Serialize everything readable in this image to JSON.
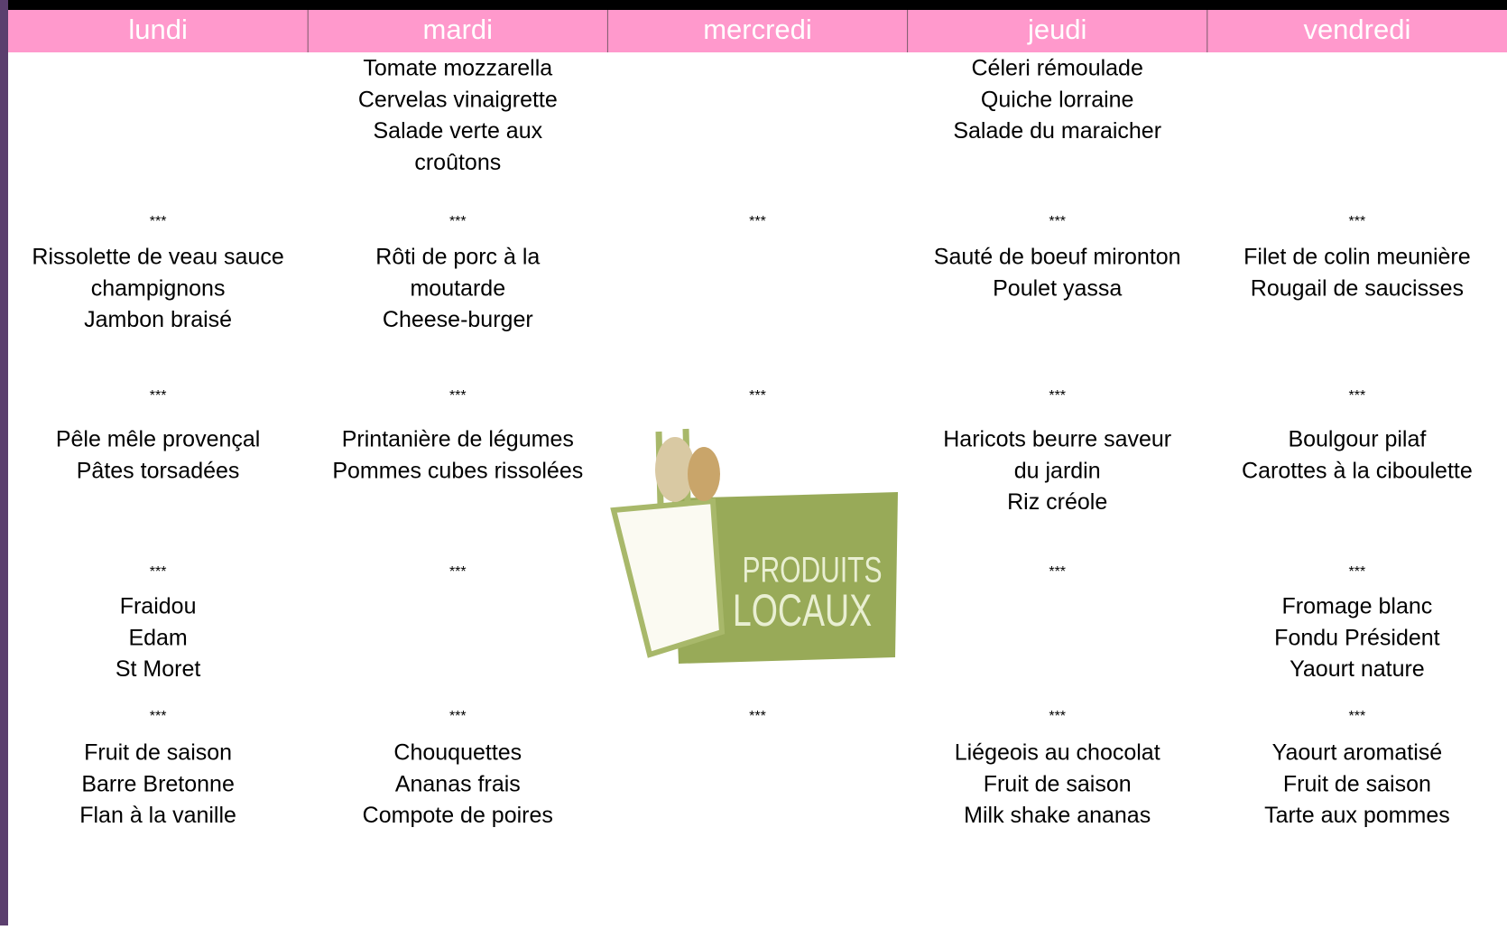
{
  "days": [
    {
      "name": "lundi",
      "separators": [
        "***",
        "***",
        "***",
        "***"
      ],
      "courses": [
        [],
        [
          "Rissolette de veau sauce",
          "champignons",
          "Jambon braisé"
        ],
        [
          "Pêle mêle provençal",
          "Pâtes torsadées"
        ],
        [
          "Fraidou",
          "Edam",
          "St Moret"
        ],
        [
          "Fruit de saison",
          "Barre Bretonne",
          "Flan à la vanille"
        ]
      ]
    },
    {
      "name": "mardi",
      "separators": [
        "***",
        "***",
        "***",
        "***"
      ],
      "courses": [
        [
          "Tomate mozzarella",
          "Cervelas vinaigrette",
          "Salade verte aux",
          "croûtons"
        ],
        [
          "Rôti de porc à la",
          "moutarde",
          "Cheese-burger"
        ],
        [
          "Printanière de légumes",
          "Pommes cubes rissolées"
        ],
        [],
        [
          "Chouquettes",
          "Ananas frais",
          "Compote de poires"
        ]
      ]
    },
    {
      "name": "mercredi",
      "separators": [
        "***",
        "***",
        null,
        "***"
      ],
      "courses": [
        [],
        [],
        [],
        [],
        []
      ]
    },
    {
      "name": "jeudi",
      "separators": [
        "***",
        "***",
        "***",
        "***"
      ],
      "courses": [
        [
          "Céleri rémoulade",
          "Quiche lorraine",
          "Salade du maraicher"
        ],
        [
          "Sauté de boeuf mironton",
          "Poulet yassa"
        ],
        [
          "Haricots beurre saveur",
          "du jardin",
          "Riz créole"
        ],
        [],
        [
          "Liégeois au chocolat",
          "Fruit de saison",
          "Milk shake ananas"
        ]
      ]
    },
    {
      "name": "vendredi",
      "separators": [
        "***",
        "***",
        "***",
        "***"
      ],
      "courses": [
        [],
        [
          "Filet de colin meunière",
          "Rougail de saucisses"
        ],
        [
          "Boulgour pilaf",
          "Carottes à la ciboulette"
        ],
        [
          "Fromage blanc",
          "Fondu Président",
          "Yaourt nature"
        ],
        [
          "Yaourt aromatisé",
          "Fruit de saison",
          "Tarte aux pommes"
        ]
      ]
    }
  ],
  "logo": {
    "line1": "PRODUITS",
    "line2": "LOCAUX"
  }
}
